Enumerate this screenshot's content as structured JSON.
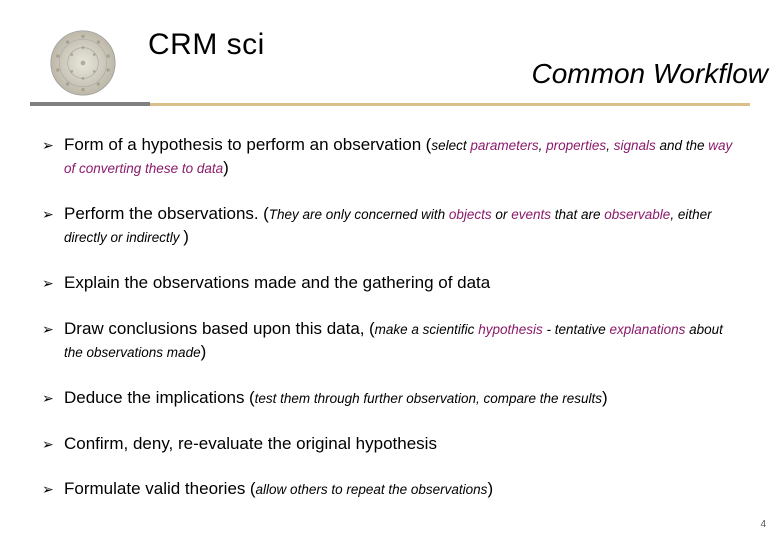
{
  "header": {
    "title_left": "CRM sci",
    "title_right": "Common Workflow"
  },
  "colors": {
    "rule_dark": "#808080",
    "rule_gold": "#d9c089",
    "keyword": "#8b1a6b",
    "text": "#000000",
    "background": "#ffffff"
  },
  "bullets": [
    {
      "main": "Form of a hypothesis to perform an observation",
      "paren_open": "(",
      "paren_parts": [
        {
          "t": "select ",
          "kw": false
        },
        {
          "t": "parameters",
          "kw": true
        },
        {
          "t": ", ",
          "kw": false
        },
        {
          "t": "properties",
          "kw": true
        },
        {
          "t": ", ",
          "kw": false
        },
        {
          "t": "signals",
          "kw": true
        },
        {
          "t": " and the ",
          "kw": false
        },
        {
          "t": "way of  converting these to data",
          "kw": true
        }
      ],
      "paren_close": ")"
    },
    {
      "main": "Perform the observations.",
      "paren_open": "(",
      "paren_parts": [
        {
          "t": "They are only concerned with ",
          "kw": false
        },
        {
          "t": "objects",
          "kw": true
        },
        {
          "t": " or ",
          "kw": false
        },
        {
          "t": "events",
          "kw": true
        },
        {
          "t": " that are ",
          "kw": false
        },
        {
          "t": "observable",
          "kw": true
        },
        {
          "t": ", either directly or indirectly ",
          "kw": false
        }
      ],
      "paren_close": ")"
    },
    {
      "main": "Explain  the observations made  and the gathering of data",
      "paren_open": "",
      "paren_parts": [],
      "paren_close": ""
    },
    {
      "main": "Draw conclusions  based upon this data,",
      "paren_open": "(",
      "paren_parts": [
        {
          "t": "make a scientific ",
          "kw": false
        },
        {
          "t": "hypothesis",
          "kw": true
        },
        {
          "t": " - tentative ",
          "kw": false
        },
        {
          "t": "explanations",
          "kw": true
        },
        {
          "t": " about the observations made",
          "kw": false
        }
      ],
      "paren_close": ")"
    },
    {
      "main": "Deduce the implications",
      "paren_open": "(",
      "paren_parts": [
        {
          "t": "test  them through further observation, compare the results",
          "kw": false
        }
      ],
      "paren_close": ")"
    },
    {
      "main": "Confirm, deny, re-evaluate  the original hypothesis",
      "paren_open": "",
      "paren_parts": [],
      "paren_close": ""
    },
    {
      "main": "Formulate valid theories",
      "paren_open": "(",
      "paren_parts": [
        {
          "t": "allow others to repeat the observations",
          "kw": false
        }
      ],
      "paren_close": ")"
    }
  ],
  "page_number": "4"
}
